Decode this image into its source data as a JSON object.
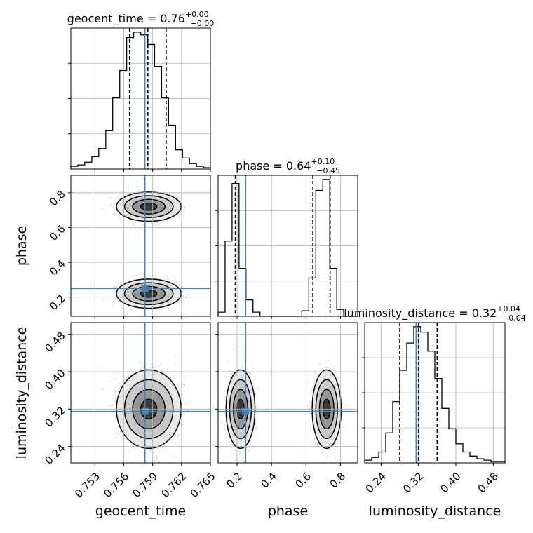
{
  "chart_data": {
    "type": "corner",
    "parameters": [
      "geocent_time",
      "phase",
      "luminosity_distance"
    ],
    "truths": {
      "geocent_time": 0.7582,
      "phase": 0.25,
      "luminosity_distance": 0.315
    },
    "ranges": {
      "geocent_time": [
        0.7505,
        0.765
      ],
      "phase": [
        0.09,
        0.9
      ],
      "luminosity_distance": [
        0.205,
        0.505
      ]
    },
    "ticks": {
      "geocent_time": [
        "0.753",
        "0.756",
        "0.759",
        "0.762",
        "0.765"
      ],
      "phase": [
        "0.2",
        "0.4",
        "0.6",
        "0.8"
      ],
      "luminosity_distance": [
        "0.24",
        "0.32",
        "0.40",
        "0.48"
      ]
    },
    "titles": [
      {
        "param": "geocent_time",
        "name": "geocent_time",
        "median": "0.76",
        "plus": "+0.00",
        "minus": "−0.00"
      },
      {
        "param": "phase",
        "name": "phase",
        "median": "0.64",
        "plus": "+0.10",
        "minus": "−0.45"
      },
      {
        "param": "luminosity_distance",
        "name": "luminosity_distance",
        "median": "0.32",
        "plus": "+0.04",
        "minus": "−0.04"
      }
    ],
    "quantiles": {
      "geocent_time": [
        0.7566,
        0.7585,
        0.7604
      ],
      "phase": [
        0.19,
        0.64,
        0.74
      ],
      "luminosity_distance": [
        0.28,
        0.32,
        0.36
      ]
    },
    "histograms": {
      "geocent_time": {
        "edges": [
          0.7505,
          0.75123,
          0.75195,
          0.75268,
          0.7534,
          0.75413,
          0.75485,
          0.75558,
          0.7563,
          0.75703,
          0.75775,
          0.75848,
          0.7592,
          0.75993,
          0.76065,
          0.76138,
          0.7621,
          0.76283,
          0.76355,
          0.76428,
          0.765
        ],
        "counts": [
          2,
          3,
          5,
          9,
          15,
          28,
          52,
          72,
          96,
          100,
          98,
          91,
          75,
          52,
          32,
          14,
          8,
          4,
          2,
          1
        ]
      },
      "phase": {
        "edges": [
          0.09,
          0.1305,
          0.171,
          0.2115,
          0.252,
          0.2925,
          0.333,
          0.3735,
          0.414,
          0.4545,
          0.495,
          0.5355,
          0.576,
          0.6165,
          0.657,
          0.6975,
          0.738,
          0.7785,
          0.819,
          0.8595,
          0.9
        ],
        "counts": [
          3,
          55,
          97,
          35,
          12,
          3,
          0,
          0,
          0,
          0,
          0,
          0,
          4,
          28,
          92,
          100,
          35,
          5,
          0,
          0
        ]
      },
      "luminosity_distance": {
        "edges": [
          0.205,
          0.22,
          0.235,
          0.25,
          0.265,
          0.28,
          0.295,
          0.31,
          0.325,
          0.34,
          0.355,
          0.37,
          0.385,
          0.4,
          0.415,
          0.43,
          0.445,
          0.46,
          0.475,
          0.49,
          0.505
        ],
        "counts": [
          2,
          4,
          8,
          22,
          45,
          68,
          88,
          100,
          96,
          82,
          62,
          40,
          25,
          14,
          8,
          5,
          3,
          2,
          1,
          1
        ]
      }
    },
    "posterior_modes": {
      "phase": [
        {
          "center": 0.22,
          "weight": 1.0,
          "sigma": 0.035
        },
        {
          "center": 0.72,
          "weight": 1.0,
          "sigma": 0.035
        }
      ],
      "geocent_time": {
        "center": 0.7586,
        "sigma": 0.0014
      },
      "luminosity_distance": {
        "center": 0.32,
        "sigma": 0.035
      }
    },
    "grid": true,
    "truth_color": "#4682b4",
    "line_color": "#000000",
    "sample_color": "#808080"
  }
}
